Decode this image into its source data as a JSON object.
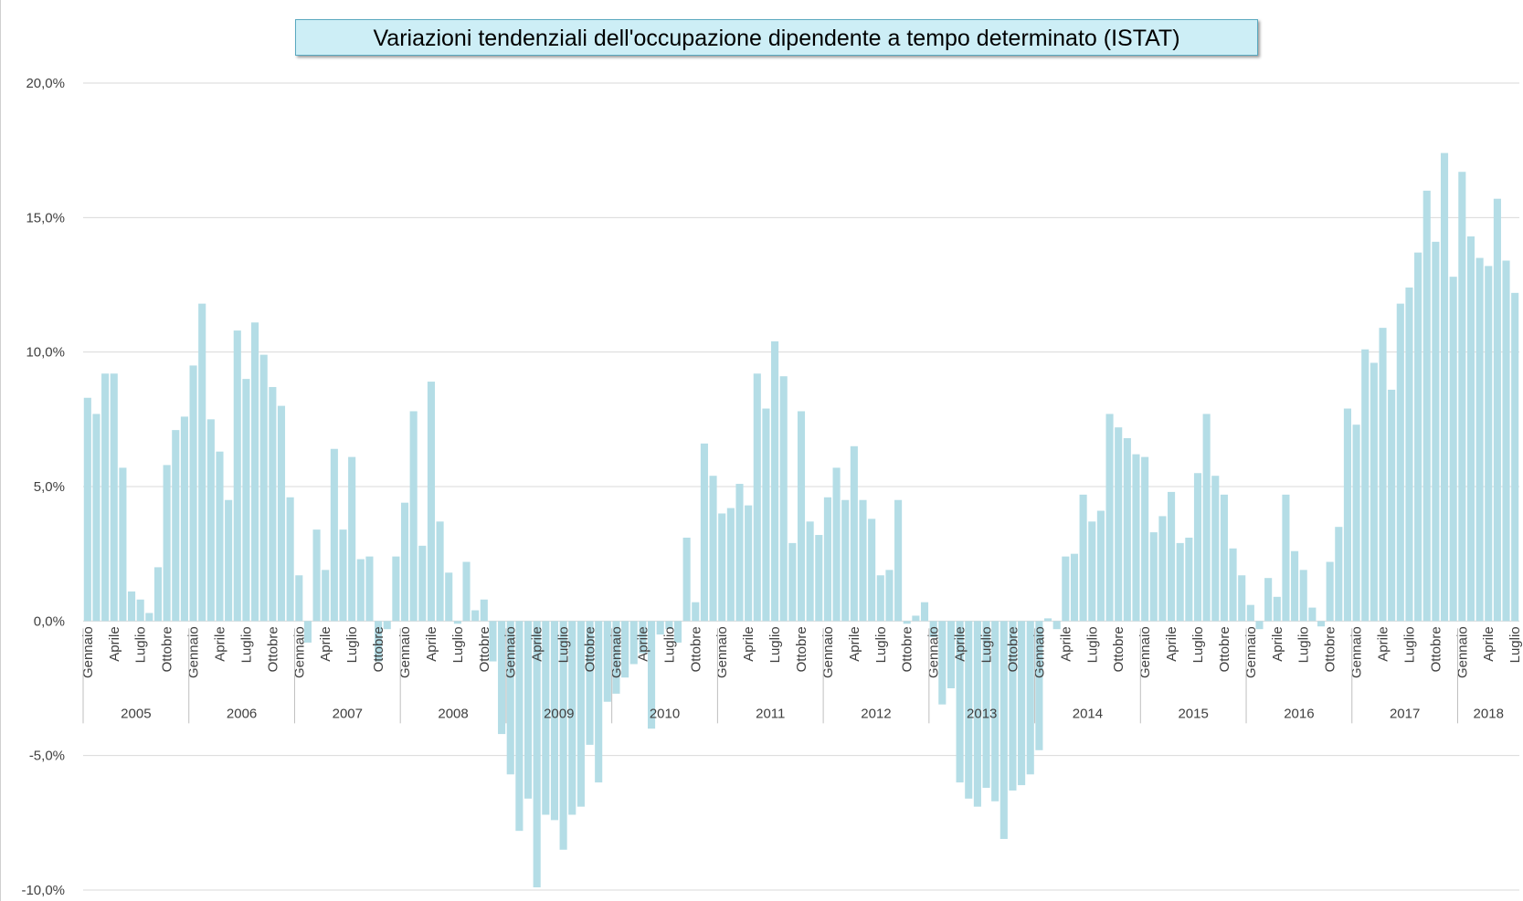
{
  "chart_data": {
    "type": "bar",
    "title": "Variazioni tendenziali dell'occupazione dipendente a tempo determinato (ISTAT)",
    "color": "#b4dde6",
    "categories": [
      "Gennaio",
      null,
      null,
      "Aprile",
      null,
      null,
      "Luglio",
      null,
      null,
      "Ottobre",
      null,
      null,
      "Gennaio",
      null,
      null,
      "Aprile",
      null,
      null,
      "Luglio",
      null,
      null,
      "Ottobre",
      null,
      null,
      "Gennaio",
      null,
      null,
      "Aprile",
      null,
      null,
      "Luglio",
      null,
      null,
      "Ottobre",
      null,
      null,
      "Gennaio",
      null,
      null,
      "Aprile",
      null,
      null,
      "Luglio",
      null,
      null,
      "Ottobre",
      null,
      null,
      "Gennaio",
      null,
      null,
      "Aprile",
      null,
      null,
      "Luglio",
      null,
      null,
      "Ottobre",
      null,
      null,
      "Gennaio",
      null,
      null,
      "Aprile",
      null,
      null,
      "Luglio",
      null,
      null,
      "Ottobre",
      null,
      null,
      "Gennaio",
      null,
      null,
      "Aprile",
      null,
      null,
      "Luglio",
      null,
      null,
      "Ottobre",
      null,
      null,
      "Gennaio",
      null,
      null,
      "Aprile",
      null,
      null,
      "Luglio",
      null,
      null,
      "Ottobre",
      null,
      null,
      "Gennaio",
      null,
      null,
      "Aprile",
      null,
      null,
      "Luglio",
      null,
      null,
      "Ottobre",
      null,
      null,
      "Gennaio",
      null,
      null,
      "Aprile",
      null,
      null,
      "Luglio",
      null,
      null,
      "Ottobre",
      null,
      null,
      "Gennaio",
      null,
      null,
      "Aprile",
      null,
      null,
      "Luglio",
      null,
      null,
      "Ottobre",
      null,
      null,
      "Gennaio",
      null,
      null,
      "Aprile",
      null,
      null,
      "Luglio",
      null,
      null,
      "Ottobre",
      null,
      null,
      "Gennaio",
      null,
      null,
      "Aprile",
      null,
      null,
      "Luglio",
      null,
      null,
      "Ottobre",
      null,
      null,
      "Gennaio",
      null,
      null,
      "Aprile",
      null,
      null,
      "Luglio"
    ],
    "years": [
      "2005",
      "2006",
      "2007",
      "2008",
      "2009",
      "2010",
      "2011",
      "2012",
      "2013",
      "2014",
      "2015",
      "2016",
      "2017",
      "2018"
    ],
    "values": [
      8.3,
      7.7,
      9.2,
      9.2,
      5.7,
      1.1,
      0.8,
      0.3,
      2.0,
      5.8,
      7.1,
      7.6,
      9.5,
      11.8,
      7.5,
      6.3,
      4.5,
      10.8,
      9.0,
      11.1,
      9.9,
      8.7,
      8.0,
      4.6,
      1.7,
      -0.8,
      3.4,
      1.9,
      6.4,
      3.4,
      6.1,
      2.3,
      2.4,
      -1.5,
      -0.3,
      2.4,
      4.4,
      7.8,
      2.8,
      8.9,
      3.7,
      1.8,
      -0.1,
      2.2,
      0.4,
      0.8,
      -1.5,
      -4.2,
      -5.7,
      -7.8,
      -6.6,
      -9.9,
      -7.2,
      -7.4,
      -8.5,
      -7.2,
      -6.9,
      -4.6,
      -6.0,
      -3.0,
      -2.7,
      -2.1,
      -1.6,
      -1.2,
      -4.0,
      -0.5,
      -0.3,
      -0.8,
      3.1,
      0.7,
      6.6,
      5.4,
      4.0,
      4.2,
      5.1,
      4.3,
      9.2,
      7.9,
      10.4,
      9.1,
      2.9,
      7.8,
      3.7,
      3.2,
      4.6,
      5.7,
      4.5,
      6.5,
      4.5,
      3.8,
      1.7,
      1.9,
      4.5,
      -0.1,
      0.2,
      0.7,
      -0.6,
      -3.1,
      -2.5,
      -6.0,
      -6.6,
      -6.9,
      -6.2,
      -6.7,
      -8.1,
      -6.3,
      -6.1,
      -5.7,
      -4.8,
      0.1,
      -0.3,
      2.4,
      2.5,
      4.7,
      3.7,
      4.1,
      7.7,
      7.2,
      6.8,
      6.2,
      6.1,
      3.3,
      3.9,
      4.8,
      2.9,
      3.1,
      5.5,
      7.7,
      5.4,
      4.7,
      2.7,
      1.7,
      0.6,
      -0.3,
      1.6,
      0.9,
      4.7,
      2.6,
      1.9,
      0.5,
      -0.2,
      2.2,
      3.5,
      7.9,
      7.3,
      10.1,
      9.6,
      10.9,
      8.6,
      11.8,
      12.4,
      13.7,
      16.0,
      14.1,
      17.4,
      12.8,
      16.7,
      14.3,
      13.5,
      13.2,
      15.7,
      13.4,
      12.2
    ],
    "ylim": [
      -10,
      20
    ],
    "yticks": [
      {
        "value": -10,
        "label": "-10,0%"
      },
      {
        "value": -5,
        "label": "-5,0%"
      },
      {
        "value": 0,
        "label": "0,0%"
      },
      {
        "value": 5,
        "label": "5,0%"
      },
      {
        "value": 10,
        "label": "10,0%"
      },
      {
        "value": 15,
        "label": "15,0%"
      },
      {
        "value": 20,
        "label": "20,0%"
      }
    ],
    "grid": true
  }
}
